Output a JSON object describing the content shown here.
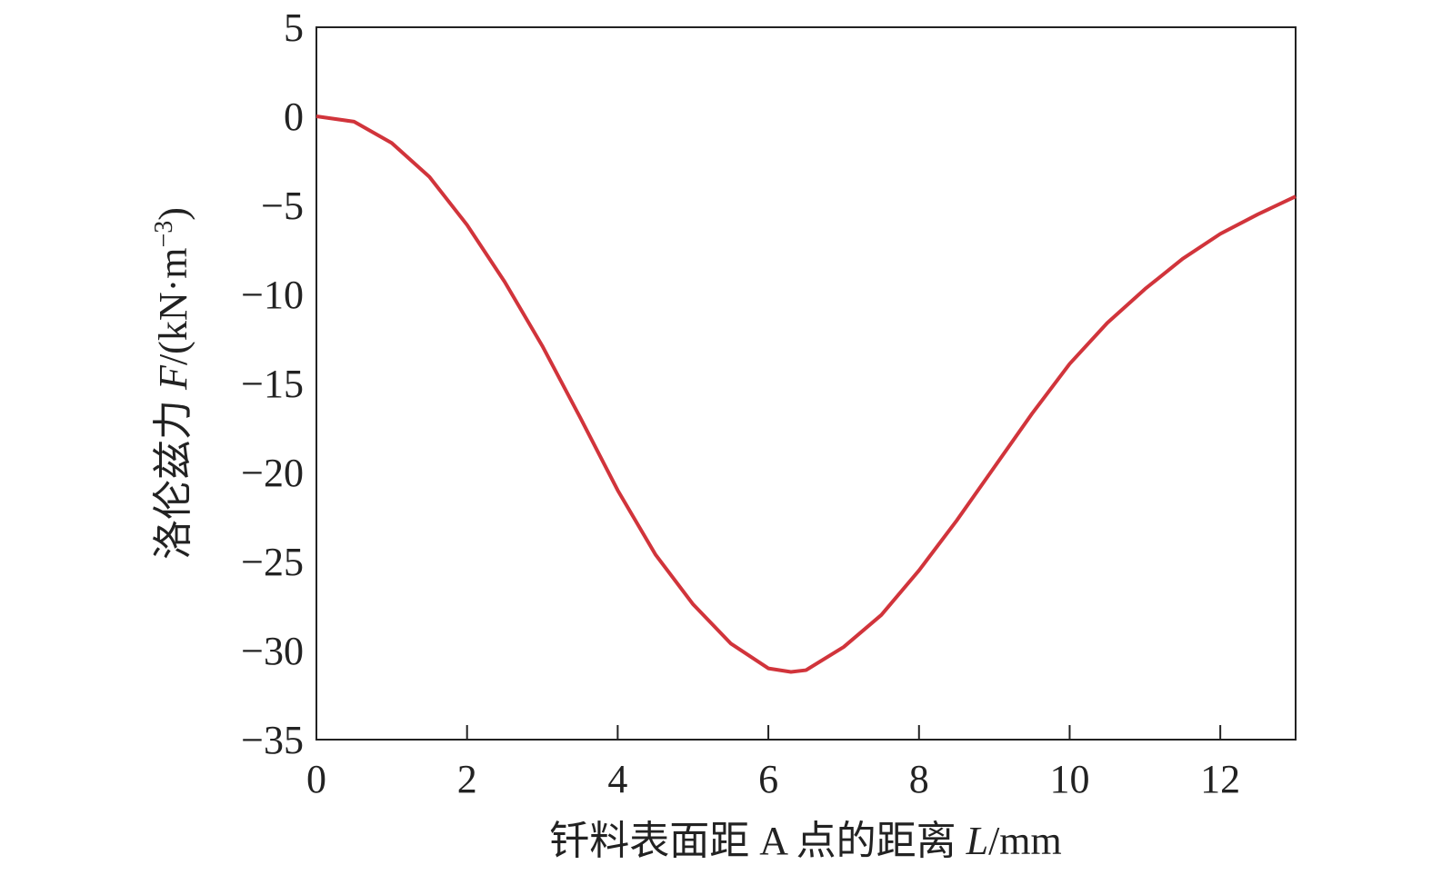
{
  "chart_data": {
    "type": "line",
    "xlabel": [
      "钎料表面距 A 点的距离 ",
      "L",
      "/mm"
    ],
    "ylabel": [
      "洛伦兹力 ",
      "F",
      "/(kN·m",
      "−3",
      ")"
    ],
    "x": [
      0,
      0.5,
      1,
      1.5,
      2,
      2.5,
      3,
      3.5,
      4,
      4.5,
      5,
      5.5,
      6,
      6.3,
      6.5,
      7,
      7.5,
      8,
      8.5,
      9,
      9.5,
      10,
      10.5,
      11,
      11.5,
      12,
      12.5,
      13
    ],
    "series": [
      {
        "color": "#d1343b",
        "values": [
          0,
          -0.3,
          -1.5,
          -3.4,
          -6.1,
          -9.3,
          -12.9,
          -16.9,
          -21.0,
          -24.6,
          -27.4,
          -29.6,
          -31.0,
          -31.2,
          -31.1,
          -29.8,
          -28.0,
          -25.5,
          -22.7,
          -19.7,
          -16.7,
          -13.9,
          -11.6,
          -9.7,
          -8.0,
          -6.6,
          -5.5,
          -4.5
        ]
      }
    ],
    "xlim": [
      0,
      13
    ],
    "xticks": [
      0,
      2,
      4,
      6,
      8,
      10,
      12
    ],
    "ylim": [
      -35,
      5
    ],
    "yticks": [
      {
        "value": -35,
        "label": "−35"
      },
      {
        "value": -30,
        "label": "−30"
      },
      {
        "value": -25,
        "label": "−25"
      },
      {
        "value": -20,
        "label": "−20"
      },
      {
        "value": -15,
        "label": "−15"
      },
      {
        "value": -10,
        "label": "−10"
      },
      {
        "value": -5,
        "label": "−5"
      },
      0,
      5
    ]
  }
}
